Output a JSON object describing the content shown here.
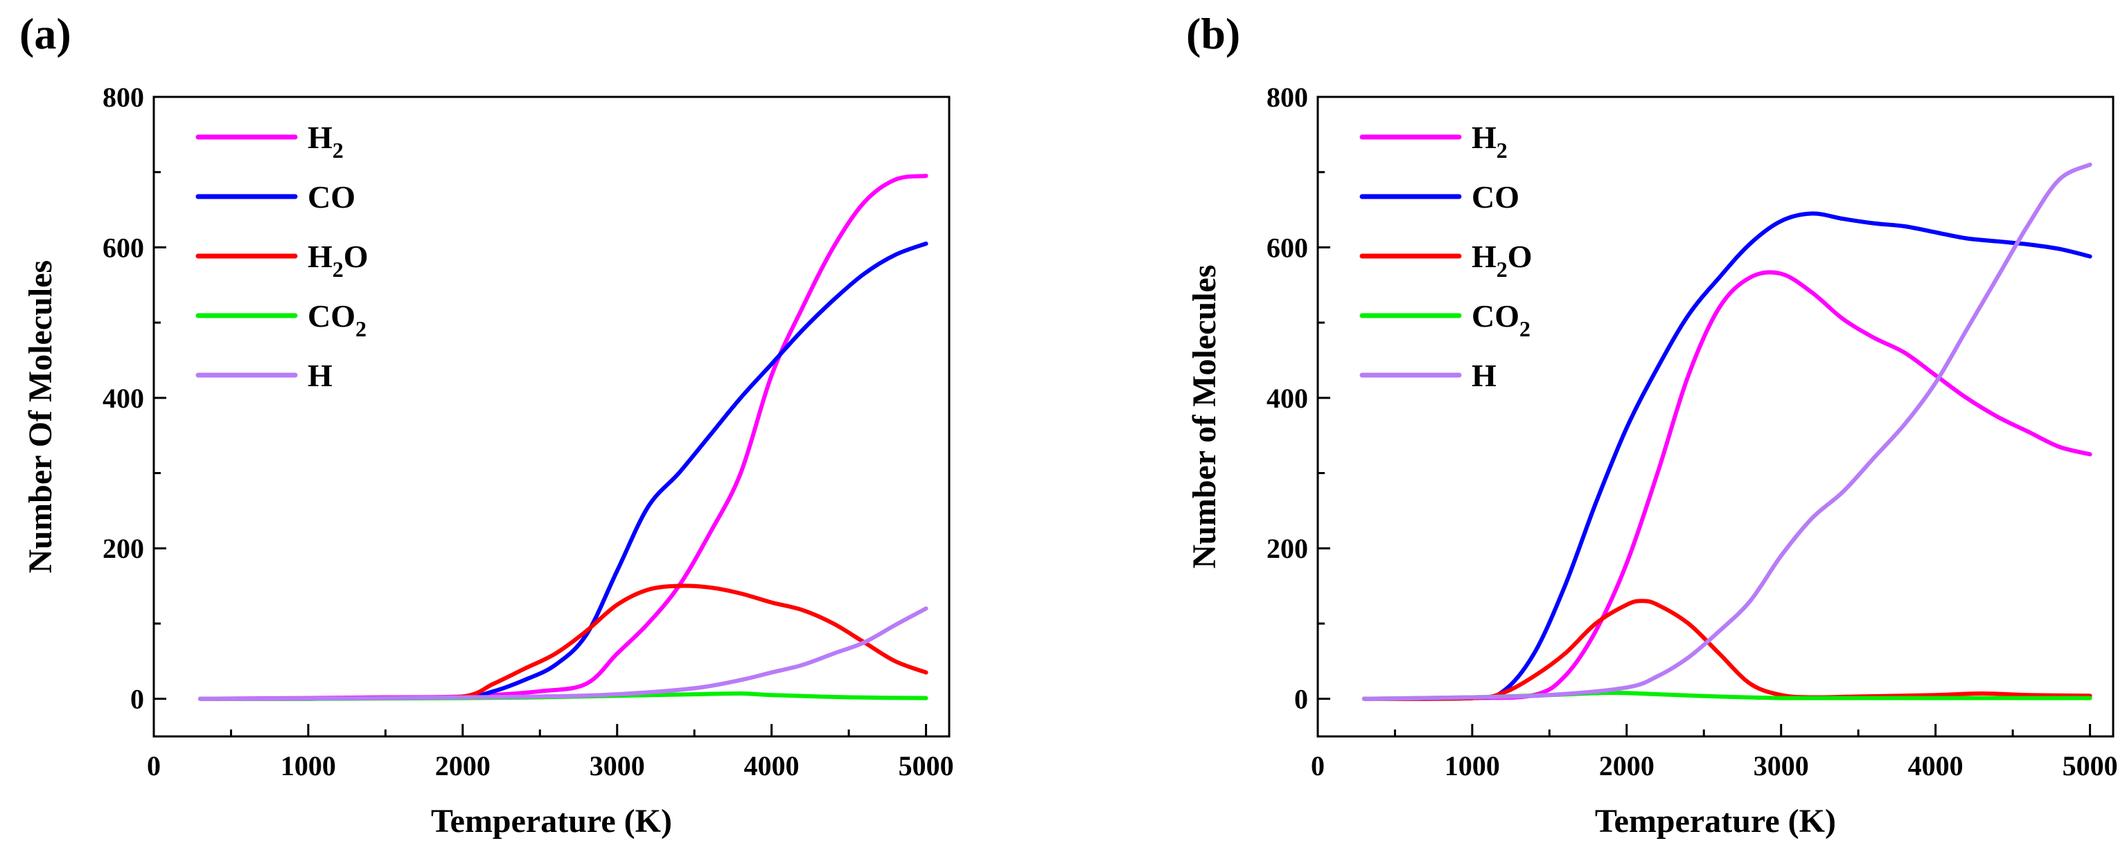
{
  "panels": [
    "(a)",
    "(b)"
  ],
  "chart_data": [
    {
      "type": "line",
      "panel_label": "(a)",
      "xlabel": "Temperature (K)",
      "ylabel": "Number Of Molecules",
      "xlim": [
        0,
        5150
      ],
      "ylim": [
        -50,
        800
      ],
      "xticks": [
        "0",
        "1000",
        "2000",
        "3000",
        "4000",
        "5000"
      ],
      "yticks": [
        "0",
        "200",
        "400",
        "600",
        "800"
      ],
      "legend_position": "top-left",
      "series": [
        {
          "name": "H2",
          "name_main": "H",
          "name_sub": "2",
          "name_tail": "",
          "color": "#ff00ff",
          "x": [
            300,
            1000,
            1500,
            2000,
            2500,
            2800,
            3000,
            3200,
            3400,
            3600,
            3800,
            4000,
            4200,
            4400,
            4600,
            4800,
            5000
          ],
          "y": [
            0,
            1,
            2,
            3,
            10,
            20,
            60,
            100,
            150,
            220,
            300,
            430,
            520,
            600,
            660,
            690,
            695
          ]
        },
        {
          "name": "CO",
          "name_main": "CO",
          "name_sub": "",
          "name_tail": "",
          "color": "#0000ff",
          "x": [
            300,
            1000,
            1500,
            2000,
            2200,
            2400,
            2600,
            2800,
            3000,
            3200,
            3400,
            3600,
            3800,
            4000,
            4200,
            4400,
            4600,
            4800,
            5000
          ],
          "y": [
            0,
            0,
            1,
            2,
            10,
            25,
            45,
            85,
            170,
            255,
            300,
            350,
            400,
            445,
            490,
            530,
            565,
            590,
            605
          ]
        },
        {
          "name": "H2O",
          "name_main": "H",
          "name_sub": "2",
          "name_tail": "O",
          "color": "#ff0000",
          "x": [
            300,
            1000,
            1500,
            2000,
            2200,
            2400,
            2600,
            2800,
            3000,
            3200,
            3400,
            3600,
            3800,
            4000,
            4200,
            4400,
            4600,
            4800,
            5000
          ],
          "y": [
            0,
            0,
            1,
            3,
            20,
            40,
            60,
            90,
            125,
            145,
            150,
            148,
            140,
            128,
            118,
            100,
            75,
            50,
            35
          ]
        },
        {
          "name": "CO2",
          "name_main": "CO",
          "name_sub": "2",
          "name_tail": "",
          "color": "#00ee00",
          "x": [
            300,
            1000,
            2000,
            2500,
            3000,
            3500,
            3800,
            4000,
            4500,
            5000
          ],
          "y": [
            0,
            0,
            1,
            2,
            4,
            6,
            7,
            5,
            2,
            1
          ]
        },
        {
          "name": "H",
          "name_main": "H",
          "name_sub": "",
          "name_tail": "",
          "color": "#b77cf7",
          "x": [
            300,
            1500,
            2500,
            3000,
            3500,
            3800,
            4000,
            4200,
            4400,
            4600,
            4800,
            5000
          ],
          "y": [
            0,
            1,
            3,
            6,
            14,
            25,
            35,
            45,
            60,
            75,
            98,
            120
          ]
        }
      ]
    },
    {
      "type": "line",
      "panel_label": "(b)",
      "xlabel": "Temperature (K)",
      "ylabel": "Number of Molecules",
      "xlim": [
        0,
        5150
      ],
      "ylim": [
        -50,
        800
      ],
      "xticks": [
        "0",
        "1000",
        "2000",
        "3000",
        "4000",
        "5000"
      ],
      "yticks": [
        "0",
        "200",
        "400",
        "600",
        "800"
      ],
      "legend_position": "top-left",
      "series": [
        {
          "name": "H2",
          "name_main": "H",
          "name_sub": "2",
          "name_tail": "",
          "color": "#ff00ff",
          "x": [
            300,
            1000,
            1400,
            1600,
            1800,
            2000,
            2200,
            2400,
            2600,
            2800,
            3000,
            3200,
            3400,
            3600,
            3800,
            4000,
            4200,
            4400,
            4600,
            4800,
            5000
          ],
          "y": [
            0,
            1,
            5,
            30,
            90,
            180,
            300,
            430,
            520,
            560,
            565,
            540,
            505,
            480,
            460,
            430,
            400,
            375,
            355,
            335,
            325
          ]
        },
        {
          "name": "CO",
          "name_main": "CO",
          "name_sub": "",
          "name_tail": "",
          "color": "#0000ff",
          "x": [
            300,
            1000,
            1200,
            1400,
            1600,
            1800,
            2000,
            2200,
            2400,
            2600,
            2800,
            3000,
            3200,
            3400,
            3600,
            3800,
            4000,
            4200,
            4400,
            4600,
            4800,
            5000
          ],
          "y": [
            0,
            1,
            10,
            60,
            150,
            260,
            360,
            440,
            510,
            560,
            605,
            635,
            645,
            638,
            632,
            628,
            620,
            612,
            608,
            604,
            598,
            588
          ]
        },
        {
          "name": "H2O",
          "name_main": "H",
          "name_sub": "2",
          "name_tail": "O",
          "color": "#ff0000",
          "x": [
            300,
            1000,
            1200,
            1400,
            1600,
            1800,
            2000,
            2100,
            2200,
            2400,
            2600,
            2800,
            3000,
            3200,
            3500,
            4000,
            4300,
            4600,
            5000
          ],
          "y": [
            0,
            1,
            8,
            30,
            60,
            100,
            125,
            130,
            125,
            100,
            60,
            20,
            5,
            2,
            3,
            5,
            7,
            5,
            4
          ]
        },
        {
          "name": "CO2",
          "name_main": "CO",
          "name_sub": "2",
          "name_tail": "",
          "color": "#00ee00",
          "x": [
            300,
            1000,
            1500,
            1900,
            2200,
            2600,
            3000,
            3500,
            4000,
            4500,
            5000
          ],
          "y": [
            0,
            2,
            5,
            8,
            6,
            3,
            1,
            1,
            1,
            1,
            1
          ]
        },
        {
          "name": "H",
          "name_main": "H",
          "name_sub": "",
          "name_tail": "",
          "color": "#b77cf7",
          "x": [
            300,
            1000,
            1500,
            2000,
            2200,
            2400,
            2600,
            2800,
            3000,
            3200,
            3400,
            3600,
            3800,
            4000,
            4200,
            4400,
            4600,
            4800,
            5000
          ],
          "y": [
            0,
            2,
            5,
            15,
            30,
            55,
            90,
            130,
            190,
            240,
            275,
            320,
            365,
            420,
            490,
            560,
            630,
            690,
            710
          ]
        }
      ]
    }
  ]
}
